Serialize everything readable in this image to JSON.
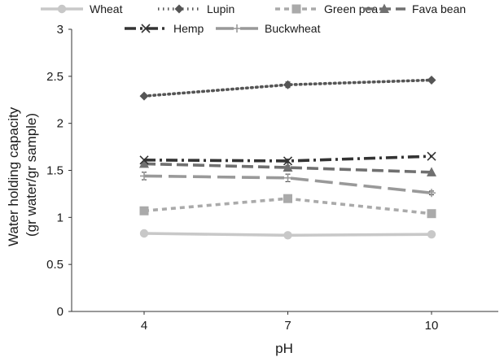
{
  "chart_data": {
    "type": "line",
    "title": "",
    "xlabel": "pH",
    "ylabel_lines": [
      "Water holding capacity",
      "(gr water/gr sample)"
    ],
    "categories": [
      "4",
      "7",
      "10"
    ],
    "yticks": [
      "0",
      "0.5",
      "1",
      "1.5",
      "2",
      "2.5",
      "3"
    ],
    "ylim": [
      0,
      3
    ],
    "grid": false,
    "legend_position": "top",
    "series": [
      {
        "name": "Wheat",
        "values": [
          0.83,
          0.81,
          0.82
        ],
        "color": "#c8c8c8",
        "dash": "solid",
        "marker": "circle",
        "errors": [
          0.01,
          0.01,
          0.01
        ]
      },
      {
        "name": "Lupin",
        "values": [
          2.29,
          2.41,
          2.46
        ],
        "color": "#555555",
        "dash": "dot",
        "marker": "diamond",
        "errors": [
          0.01,
          0.03,
          0.01
        ]
      },
      {
        "name": "Green pea",
        "values": [
          1.07,
          1.2,
          1.04
        ],
        "color": "#aaaaaa",
        "dash": "dash",
        "marker": "square",
        "errors": [
          0.01,
          0.01,
          0.01
        ]
      },
      {
        "name": "Fava bean",
        "values": [
          1.57,
          1.53,
          1.48
        ],
        "color": "#707070",
        "dash": "longdash",
        "marker": "triangle",
        "errors": [
          0.01,
          0.02,
          0.01
        ]
      },
      {
        "name": "Hemp",
        "values": [
          1.61,
          1.6,
          1.65
        ],
        "color": "#333333",
        "dash": "dashdot",
        "marker": "x",
        "errors": [
          0.01,
          0.02,
          0.01
        ]
      },
      {
        "name": "Buckwheat",
        "values": [
          1.44,
          1.42,
          1.26
        ],
        "color": "#999999",
        "dash": "longdashgap",
        "marker": "plus",
        "errors": [
          0.04,
          0.04,
          0.02
        ]
      }
    ]
  }
}
